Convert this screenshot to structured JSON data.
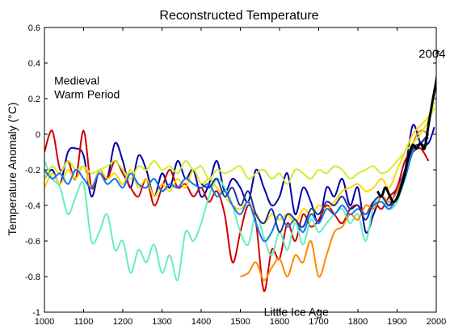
{
  "chart_data": {
    "type": "line",
    "title": "Reconstructed Temperature",
    "xlabel": "",
    "ylabel": "Temperature Anomaly (°C)",
    "xlim": [
      1000,
      2000
    ],
    "ylim": [
      -1,
      0.6
    ],
    "xticks": [
      1000,
      1100,
      1200,
      1300,
      1400,
      1500,
      1600,
      1700,
      1800,
      1900,
      2000
    ],
    "yticks": [
      -1,
      -0.8,
      -0.6,
      -0.4,
      -0.2,
      0,
      0.2,
      0.4,
      0.6
    ],
    "ytick_labels": [
      "-1",
      "-0.8",
      "-0.6",
      "-0.4",
      "-0.2",
      "0",
      "0.2",
      "0.4",
      "0.6"
    ],
    "grid": false,
    "annotations": [
      {
        "text_lines": [
          "Medieval",
          "Warm Period"
        ],
        "x": 1025,
        "y": 0.28
      },
      {
        "text_lines": [
          "Little Ice Age"
        ],
        "x": 1560,
        "y": -1.02
      },
      {
        "text_lines": [
          "2004"
        ],
        "x": 1955,
        "y": 0.43,
        "bold": true
      },
      {
        "text_lines": [
          "*"
        ],
        "x": 1998,
        "y": 0.43,
        "bold": true
      }
    ],
    "series": [
      {
        "color": "#0000aa",
        "width": 2,
        "x": [
          1000,
          1020,
          1040,
          1060,
          1080,
          1100,
          1120,
          1140,
          1160,
          1180,
          1200,
          1220,
          1240,
          1260,
          1280,
          1300,
          1320,
          1340,
          1360,
          1380,
          1400,
          1420,
          1440,
          1460,
          1480,
          1500,
          1520,
          1540,
          1560,
          1580,
          1600,
          1620,
          1640,
          1660,
          1680,
          1700,
          1720,
          1740,
          1760,
          1780,
          1800,
          1820,
          1840,
          1860,
          1880,
          1900,
          1920,
          1940,
          1960,
          1980,
          1995
        ],
        "y": [
          -0.25,
          -0.2,
          -0.28,
          -0.1,
          -0.08,
          -0.12,
          -0.35,
          -0.2,
          -0.25,
          -0.05,
          -0.15,
          -0.3,
          -0.12,
          -0.2,
          -0.35,
          -0.22,
          -0.3,
          -0.15,
          -0.25,
          -0.2,
          -0.35,
          -0.28,
          -0.15,
          -0.32,
          -0.25,
          -0.3,
          -0.38,
          -0.2,
          -0.3,
          -0.4,
          -0.35,
          -0.22,
          -0.45,
          -0.3,
          -0.38,
          -0.5,
          -0.3,
          -0.35,
          -0.25,
          -0.4,
          -0.3,
          -0.55,
          -0.45,
          -0.35,
          -0.4,
          -0.3,
          -0.2,
          0.05,
          -0.05,
          -0.05,
          0.04
        ]
      },
      {
        "color": "#cc0000",
        "width": 2,
        "x": [
          1000,
          1020,
          1040,
          1060,
          1080,
          1100,
          1120,
          1140,
          1160,
          1180,
          1200,
          1220,
          1240,
          1260,
          1280,
          1300,
          1320,
          1340,
          1360,
          1380,
          1400,
          1420,
          1440,
          1460,
          1480,
          1500,
          1520,
          1540,
          1560,
          1580,
          1600,
          1620,
          1640,
          1660,
          1680,
          1700,
          1720,
          1740,
          1760,
          1780,
          1800,
          1820,
          1840,
          1860,
          1880,
          1900,
          1920,
          1940,
          1960,
          1980
        ],
        "y": [
          -0.1,
          0.02,
          -0.2,
          -0.15,
          -0.25,
          0.02,
          -0.3,
          -0.2,
          -0.25,
          -0.15,
          -0.22,
          -0.3,
          -0.35,
          -0.25,
          -0.4,
          -0.3,
          -0.2,
          -0.3,
          -0.28,
          -0.35,
          -0.3,
          -0.38,
          -0.32,
          -0.45,
          -0.72,
          -0.55,
          -0.4,
          -0.5,
          -0.88,
          -0.65,
          -0.7,
          -0.5,
          -0.6,
          -0.45,
          -0.52,
          -0.48,
          -0.4,
          -0.45,
          -0.5,
          -0.42,
          -0.4,
          -0.45,
          -0.38,
          -0.42,
          -0.35,
          -0.3,
          -0.15,
          -0.1,
          -0.08,
          -0.15
        ]
      },
      {
        "color": "#66eebb",
        "width": 2,
        "x": [
          1000,
          1020,
          1040,
          1060,
          1080,
          1100,
          1120,
          1140,
          1160,
          1180,
          1200,
          1220,
          1240,
          1260,
          1280,
          1300,
          1320,
          1340,
          1360,
          1380,
          1400,
          1420,
          1440,
          1460,
          1480,
          1500,
          1520,
          1540,
          1560,
          1580,
          1600,
          1620,
          1640,
          1660,
          1680,
          1700,
          1720,
          1740,
          1760,
          1780,
          1800,
          1820,
          1840,
          1860,
          1880,
          1900,
          1920,
          1940,
          1960,
          1980
        ],
        "y": [
          -0.15,
          -0.25,
          -0.3,
          -0.45,
          -0.35,
          -0.28,
          -0.6,
          -0.55,
          -0.45,
          -0.65,
          -0.6,
          -0.78,
          -0.65,
          -0.72,
          -0.62,
          -0.78,
          -0.68,
          -0.82,
          -0.55,
          -0.6,
          -0.5,
          -0.35,
          -0.25,
          -0.3,
          -0.4,
          -0.55,
          -0.62,
          -0.45,
          -0.58,
          -0.68,
          -0.55,
          -0.65,
          -0.5,
          -0.62,
          -0.48,
          -0.55,
          -0.5,
          -0.45,
          -0.42,
          -0.5,
          -0.45,
          -0.6,
          -0.4,
          -0.35,
          -0.42,
          -0.38,
          -0.25,
          -0.1,
          -0.05,
          -0.02
        ]
      },
      {
        "color": "#ff8800",
        "width": 2,
        "x": [
          1500,
          1520,
          1540,
          1560,
          1580,
          1600,
          1620,
          1640,
          1660,
          1680,
          1700,
          1720,
          1740,
          1760,
          1780,
          1800,
          1820,
          1840,
          1860,
          1880,
          1900,
          1920,
          1940,
          1960,
          1980
        ],
        "y": [
          -0.8,
          -0.78,
          -0.72,
          -0.82,
          -0.75,
          -0.7,
          -0.8,
          -0.68,
          -0.72,
          -0.6,
          -0.8,
          -0.68,
          -0.55,
          -0.52,
          -0.45,
          -0.48,
          -0.4,
          -0.42,
          -0.35,
          -0.38,
          -0.32,
          -0.2,
          -0.05,
          0.02,
          0.0
        ]
      },
      {
        "color": "#ffd700",
        "width": 2,
        "x": [
          1000,
          1020,
          1040,
          1060,
          1080,
          1100,
          1120,
          1140,
          1160,
          1180,
          1200,
          1220,
          1240,
          1260,
          1280,
          1300,
          1320,
          1340,
          1360,
          1380,
          1400,
          1420,
          1440,
          1460,
          1480,
          1500,
          1520,
          1540,
          1560,
          1580,
          1600,
          1620,
          1640,
          1660,
          1680,
          1700,
          1720,
          1740,
          1760,
          1780,
          1800,
          1820,
          1840,
          1860,
          1880,
          1900,
          1920,
          1940,
          1960,
          1980,
          1995
        ],
        "y": [
          -0.3,
          -0.22,
          -0.28,
          -0.2,
          -0.25,
          -0.18,
          -0.3,
          -0.2,
          -0.25,
          -0.22,
          -0.28,
          -0.2,
          -0.3,
          -0.25,
          -0.35,
          -0.28,
          -0.32,
          -0.25,
          -0.3,
          -0.2,
          -0.28,
          -0.25,
          -0.3,
          -0.35,
          -0.4,
          -0.42,
          -0.38,
          -0.45,
          -0.5,
          -0.45,
          -0.48,
          -0.45,
          -0.5,
          -0.42,
          -0.45,
          -0.4,
          -0.42,
          -0.38,
          -0.32,
          -0.3,
          -0.28,
          -0.32,
          -0.3,
          -0.25,
          -0.3,
          -0.2,
          -0.1,
          0.0,
          0.05,
          0.1,
          0.18
        ]
      },
      {
        "color": "#ccee33",
        "width": 2,
        "x": [
          1000,
          1020,
          1040,
          1060,
          1080,
          1100,
          1120,
          1140,
          1160,
          1180,
          1200,
          1220,
          1240,
          1260,
          1280,
          1300,
          1320,
          1340,
          1360,
          1380,
          1400,
          1420,
          1440,
          1460,
          1480,
          1500,
          1520,
          1540,
          1560,
          1580,
          1600,
          1620,
          1640,
          1660,
          1680,
          1700,
          1720,
          1740,
          1760,
          1780,
          1800,
          1820,
          1840,
          1860,
          1880,
          1900,
          1920,
          1940,
          1960,
          1980,
          1995
        ],
        "y": [
          -0.25,
          -0.18,
          -0.22,
          -0.15,
          -0.2,
          -0.18,
          -0.22,
          -0.2,
          -0.18,
          -0.15,
          -0.2,
          -0.25,
          -0.18,
          -0.2,
          -0.15,
          -0.2,
          -0.18,
          -0.22,
          -0.15,
          -0.2,
          -0.18,
          -0.25,
          -0.2,
          -0.22,
          -0.2,
          -0.18,
          -0.25,
          -0.22,
          -0.2,
          -0.25,
          -0.22,
          -0.28,
          -0.2,
          -0.22,
          -0.25,
          -0.2,
          -0.22,
          -0.18,
          -0.2,
          -0.25,
          -0.22,
          -0.2,
          -0.18,
          -0.22,
          -0.2,
          -0.15,
          -0.1,
          -0.05,
          0.0,
          0.08,
          0.15
        ]
      },
      {
        "color": "#1177ee",
        "width": 2,
        "x": [
          1000,
          1020,
          1040,
          1060,
          1080,
          1100,
          1120,
          1140,
          1160,
          1180,
          1200,
          1220,
          1240,
          1260,
          1280,
          1300,
          1320,
          1340,
          1360,
          1380,
          1400,
          1420,
          1440,
          1460,
          1480,
          1500,
          1520,
          1540,
          1560,
          1580,
          1600,
          1620,
          1640,
          1660,
          1680,
          1700,
          1720,
          1740,
          1760,
          1780,
          1800,
          1820,
          1840,
          1860,
          1880,
          1900,
          1920,
          1940,
          1960,
          1980
        ],
        "y": [
          -0.2,
          -0.25,
          -0.22,
          -0.28,
          -0.2,
          -0.25,
          -0.3,
          -0.22,
          -0.28,
          -0.25,
          -0.3,
          -0.22,
          -0.28,
          -0.3,
          -0.25,
          -0.32,
          -0.28,
          -0.3,
          -0.25,
          -0.28,
          -0.3,
          -0.28,
          -0.35,
          -0.32,
          -0.4,
          -0.45,
          -0.38,
          -0.5,
          -0.6,
          -0.55,
          -0.45,
          -0.52,
          -0.48,
          -0.55,
          -0.45,
          -0.5,
          -0.42,
          -0.45,
          -0.4,
          -0.45,
          -0.42,
          -0.45,
          -0.4,
          -0.38,
          -0.42,
          -0.35,
          -0.25,
          -0.1,
          -0.05,
          -0.02
        ]
      },
      {
        "color": "#223399",
        "width": 2,
        "x": [
          1400,
          1420,
          1440,
          1460,
          1480,
          1500,
          1520,
          1540,
          1560,
          1580,
          1600,
          1620,
          1640,
          1660,
          1680,
          1700,
          1720,
          1740,
          1760,
          1780,
          1800,
          1820,
          1840,
          1860,
          1880,
          1900,
          1920,
          1940,
          1960,
          1980
        ],
        "y": [
          -0.28,
          -0.3,
          -0.25,
          -0.35,
          -0.3,
          -0.4,
          -0.32,
          -0.45,
          -0.5,
          -0.42,
          -0.55,
          -0.45,
          -0.48,
          -0.52,
          -0.42,
          -0.45,
          -0.38,
          -0.4,
          -0.35,
          -0.42,
          -0.4,
          -0.48,
          -0.38,
          -0.35,
          -0.4,
          -0.35,
          -0.2,
          -0.08,
          -0.05,
          0.0
        ]
      },
      {
        "color": "#000000",
        "width": 3,
        "x": [
          1850,
          1860,
          1870,
          1880,
          1890,
          1900,
          1910,
          1920,
          1930,
          1940,
          1950,
          1960,
          1970,
          1980,
          1990,
          2000,
          2004
        ],
        "y": [
          -0.32,
          -0.35,
          -0.3,
          -0.34,
          -0.38,
          -0.36,
          -0.3,
          -0.22,
          -0.12,
          -0.06,
          -0.08,
          -0.05,
          -0.08,
          0.05,
          0.18,
          0.3,
          0.36
        ]
      }
    ]
  }
}
